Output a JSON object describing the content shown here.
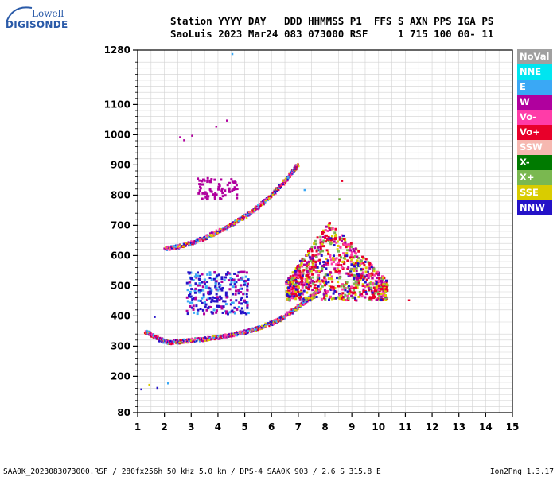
{
  "logo": {
    "top_text": "Lowell",
    "main_text": "DIGISONDE"
  },
  "header": {
    "line1": "Station YYYY DAY   DDD HHMMSS P1  FFS S AXN PPS IGA PS",
    "line2": "SaoLuis 2023 Mar24 083 073000 RSF     1 715 100 00- 11"
  },
  "legend": [
    {
      "label": "NoVal",
      "color": "#a0a0a0"
    },
    {
      "label": "NNE",
      "color": "#00e5f0"
    },
    {
      "label": "E",
      "color": "#3aa8f5"
    },
    {
      "label": "W",
      "color": "#b0009e"
    },
    {
      "label": "Vo-",
      "color": "#ff3ca8"
    },
    {
      "label": "Vo+",
      "color": "#e8002a"
    },
    {
      "label": "SSW",
      "color": "#f6b8b0"
    },
    {
      "label": "X-",
      "color": "#007a00"
    },
    {
      "label": "X+",
      "color": "#7ab850"
    },
    {
      "label": "SSE",
      "color": "#d9cc00"
    },
    {
      "label": "NNW",
      "color": "#2412c8"
    }
  ],
  "footer": {
    "left": "SAA0K_2023083073000.RSF / 280fx256h 50 kHz 5.0 km / DPS-4 SAA0K 903 / 2.6 S 315.8 E",
    "right": "Ion2Png 1.3.17"
  },
  "chart_data": {
    "type": "scatter",
    "xlim": [
      1,
      15
    ],
    "ylim": [
      80,
      1280
    ],
    "x_ticks": [
      "1",
      "2",
      "3",
      "4",
      "5",
      "6",
      "7",
      "8",
      "9",
      "10",
      "11",
      "12",
      "13",
      "14",
      "15"
    ],
    "y_ticks": [
      "80",
      "200",
      "300",
      "400",
      "500",
      "600",
      "700",
      "800",
      "900",
      "1000",
      "1100",
      "1280"
    ],
    "grid": true,
    "traces": [
      {
        "name": "",
        "color_key": "mixed",
        "x": [
          1.25,
          1.5,
          1.8,
          2.0,
          2.2,
          2.5,
          3.0,
          3.5,
          4.0,
          4.5,
          5.0,
          5.5,
          6.0,
          6.3,
          6.6,
          6.9,
          7.2,
          7.5,
          7.8
        ],
        "y": [
          350,
          340,
          325,
          318,
          315,
          317,
          322,
          326,
          332,
          340,
          350,
          362,
          380,
          392,
          410,
          428,
          450,
          470,
          490
        ]
      },
      {
        "name": "",
        "color_key": "mixed",
        "x": [
          2.0,
          2.5,
          3.0,
          3.5,
          4.0,
          4.5,
          5.0,
          5.5,
          6.0,
          6.3,
          6.6,
          6.8,
          6.95
        ],
        "y": [
          625,
          632,
          645,
          662,
          683,
          706,
          733,
          765,
          805,
          832,
          862,
          885,
          905
        ]
      }
    ],
    "clusters": [
      {
        "x_range": [
          6.5,
          10.3
        ],
        "y_range": [
          455,
          720
        ]
      },
      {
        "x_range": [
          2.8,
          5.1
        ],
        "y_range": [
          410,
          550
        ]
      },
      {
        "x_range": [
          3.2,
          4.7
        ],
        "y_range": [
          790,
          860
        ]
      }
    ]
  }
}
